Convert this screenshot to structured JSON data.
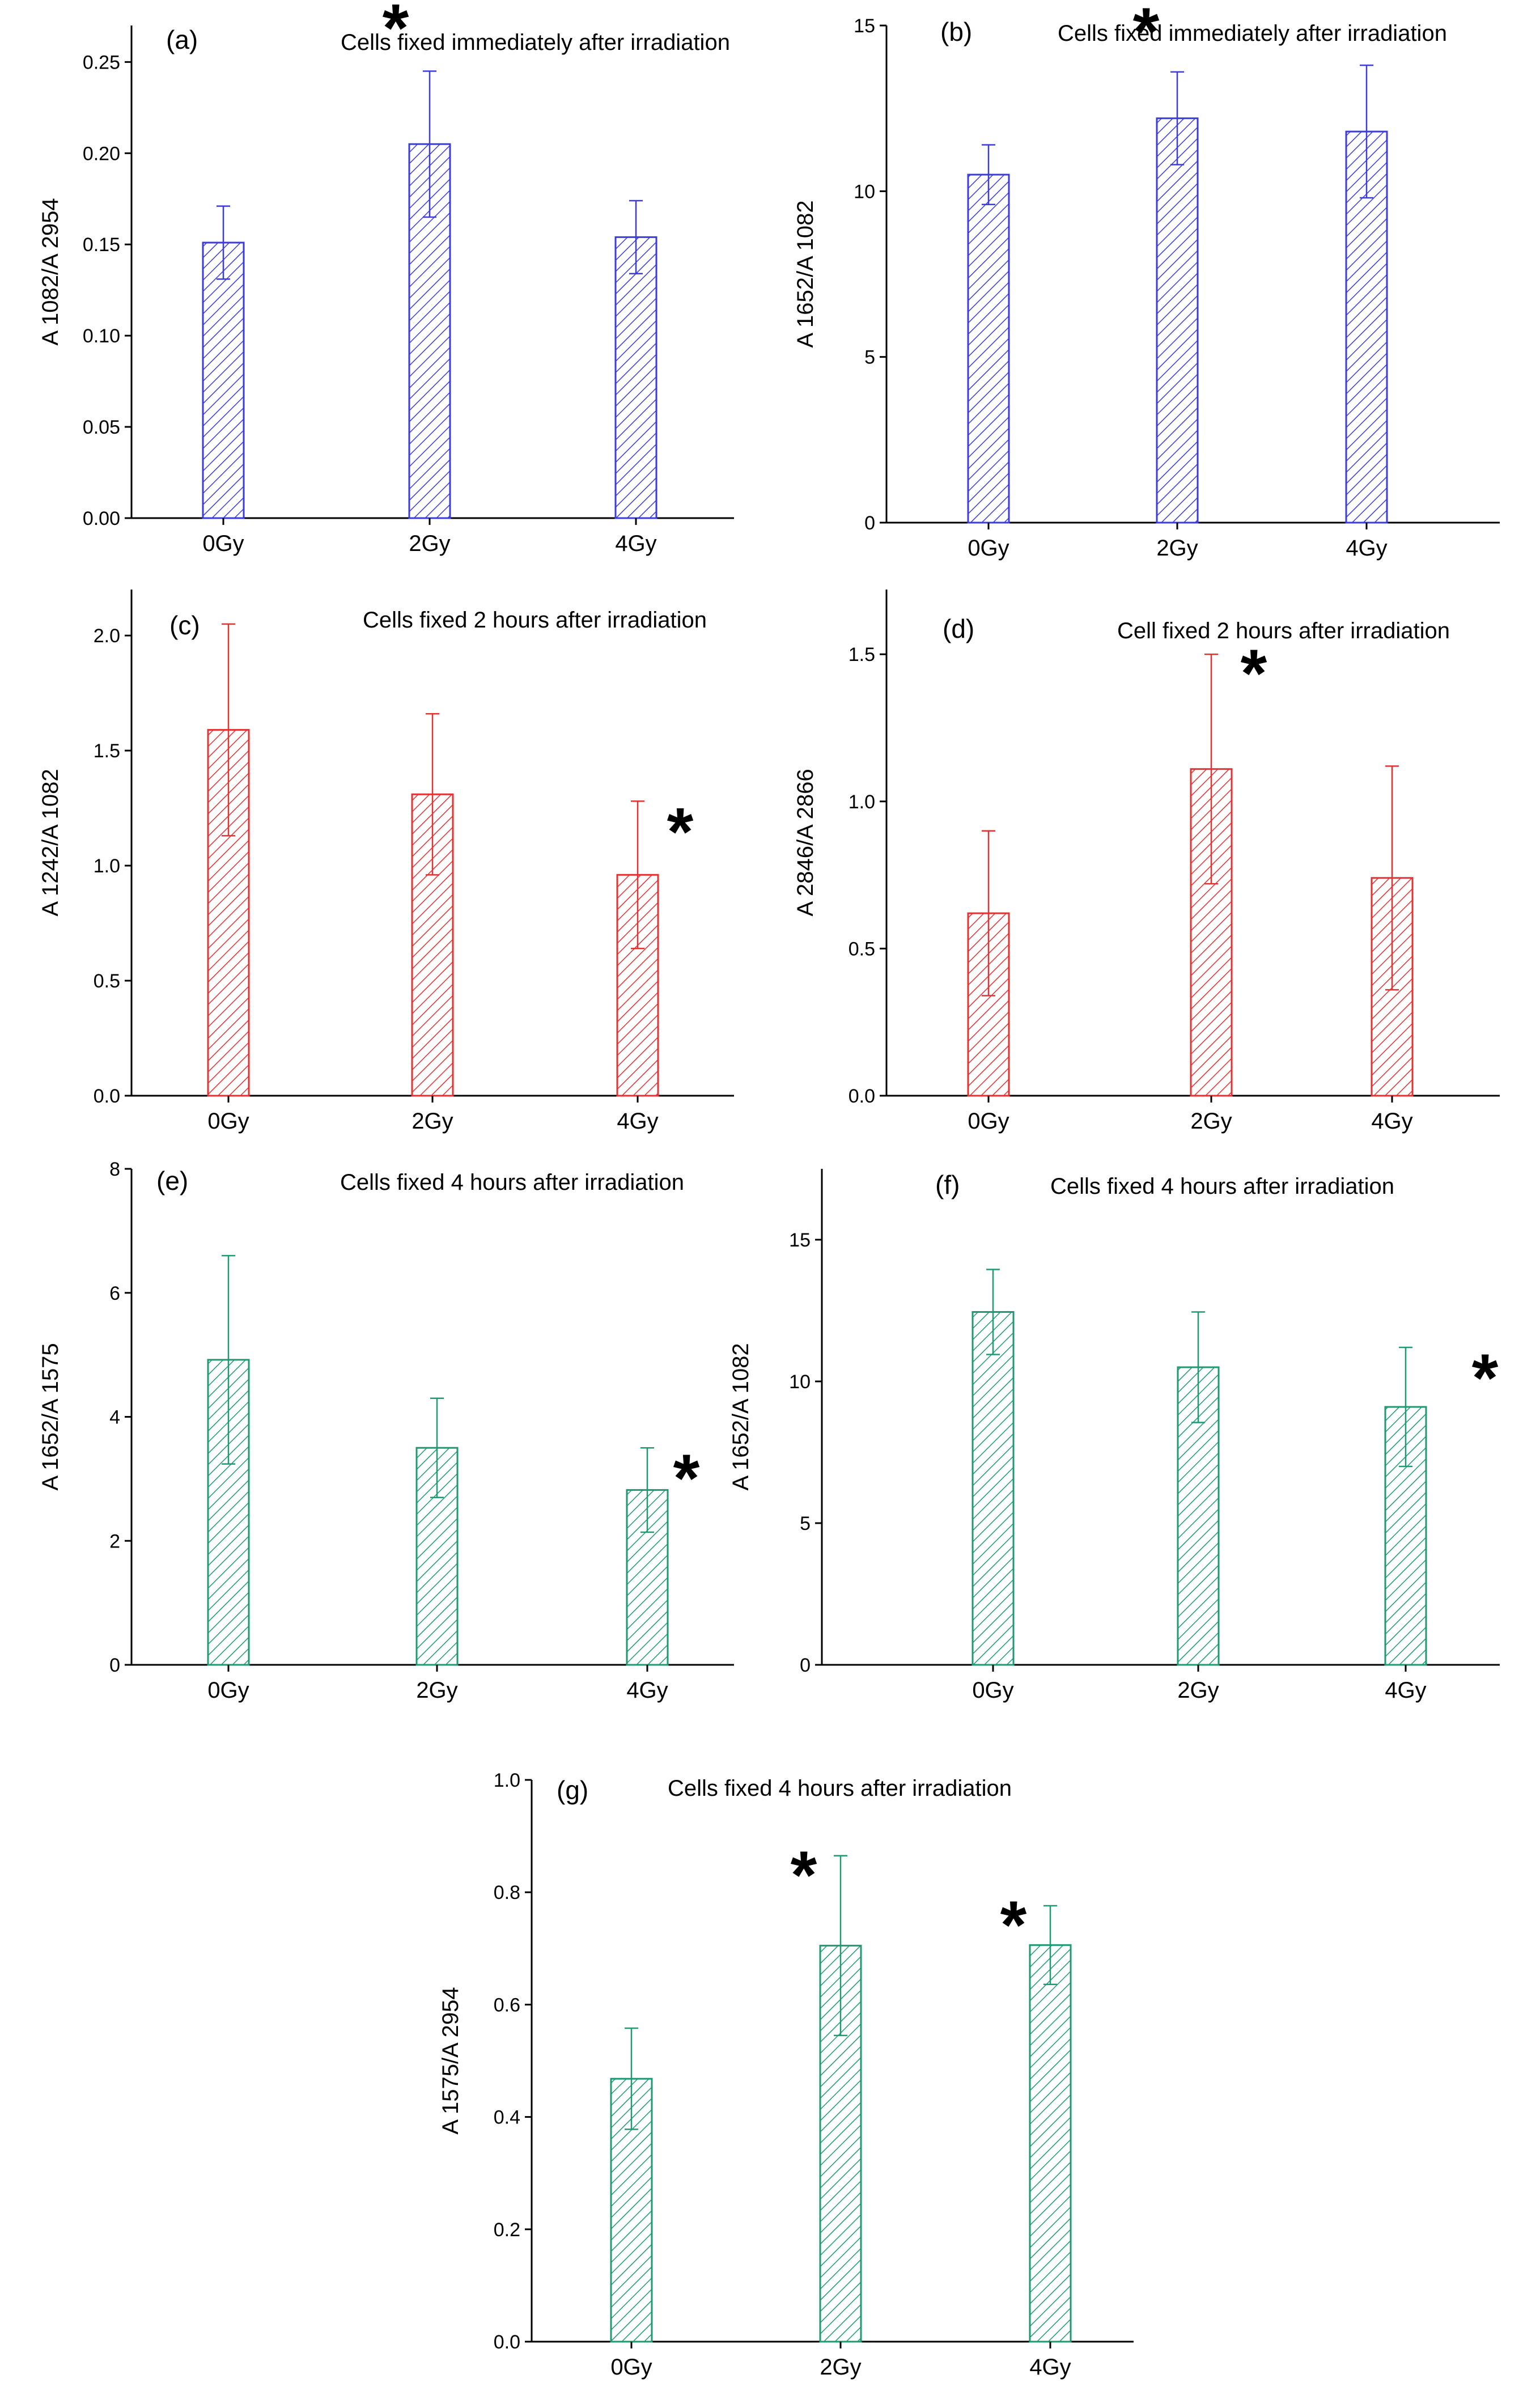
{
  "figure_title": "",
  "colors": {
    "blue": "#3b3bde",
    "red": "#e23232",
    "green": "#1e9a72"
  },
  "chart_data": [
    {
      "type": "bar",
      "panel": "(a)",
      "title": "Cells fixed immediately after irradiation",
      "ylabel": "A 1082/A 2954",
      "xlabel": "",
      "categories": [
        "0Gy",
        "2Gy",
        "4Gy"
      ],
      "values": [
        0.151,
        0.205,
        0.154
      ],
      "errors": [
        0.02,
        0.04,
        0.02
      ],
      "ylim": [
        0,
        0.27
      ],
      "yticks": [
        0.0,
        0.05,
        0.1,
        0.15,
        0.2,
        0.25
      ],
      "ytick_labels": [
        "0.00",
        "0.05",
        "0.10",
        "0.15",
        "0.20",
        "0.25"
      ],
      "significance": [
        "",
        "*",
        ""
      ],
      "color": "blue"
    },
    {
      "type": "bar",
      "panel": "(b)",
      "title": "Cells fixed immediately after irradiation",
      "ylabel": "A 1652/A 1082",
      "xlabel": "",
      "categories": [
        "0Gy",
        "2Gy",
        "4Gy"
      ],
      "values": [
        10.5,
        12.2,
        11.8
      ],
      "errors": [
        0.9,
        1.4,
        2.0
      ],
      "ylim": [
        0,
        15
      ],
      "yticks": [
        0,
        5,
        10,
        15
      ],
      "ytick_labels": [
        "0",
        "5",
        "10",
        "15"
      ],
      "significance": [
        "",
        "*",
        ""
      ],
      "color": "blue"
    },
    {
      "type": "bar",
      "panel": "(c)",
      "title": "Cells fixed 2 hours after irradiation",
      "ylabel": "A 1242/A 1082",
      "xlabel": "",
      "categories": [
        "0Gy",
        "2Gy",
        "4Gy"
      ],
      "values": [
        1.59,
        1.31,
        0.96
      ],
      "errors": [
        0.46,
        0.35,
        0.32
      ],
      "ylim": [
        0,
        2.2
      ],
      "yticks": [
        0.0,
        0.5,
        1.0,
        1.5,
        2.0
      ],
      "ytick_labels": [
        "0.0",
        "0.5",
        "1.0",
        "1.5",
        "2.0"
      ],
      "significance": [
        "",
        "",
        "*"
      ],
      "color": "red"
    },
    {
      "type": "bar",
      "panel": "(d)",
      "title": "Cell fixed 2 hours after irradiation",
      "ylabel": "A 2846/A 2866",
      "xlabel": "",
      "categories": [
        "0Gy",
        "2Gy",
        "4Gy"
      ],
      "values": [
        0.62,
        1.11,
        0.74
      ],
      "errors": [
        0.28,
        0.39,
        0.38
      ],
      "ylim": [
        0,
        1.72
      ],
      "yticks": [
        0.0,
        0.5,
        1.0,
        1.5
      ],
      "ytick_labels": [
        "0.0",
        "0.5",
        "1.0",
        "1.5"
      ],
      "significance": [
        "",
        "*",
        ""
      ],
      "color": "red"
    },
    {
      "type": "bar",
      "panel": "(e)",
      "title": "Cells fixed 4 hours after irradiation",
      "ylabel": "A 1652/A 1575",
      "xlabel": "",
      "categories": [
        "0Gy",
        "2Gy",
        "4Gy"
      ],
      "values": [
        4.92,
        3.5,
        2.82
      ],
      "errors": [
        1.68,
        0.8,
        0.68
      ],
      "ylim": [
        0,
        8
      ],
      "yticks": [
        0,
        2,
        4,
        6,
        8
      ],
      "ytick_labels": [
        "0",
        "2",
        "4",
        "6",
        "8"
      ],
      "significance": [
        "",
        "",
        "*"
      ],
      "color": "green"
    },
    {
      "type": "bar",
      "panel": "(f)",
      "title": "Cells fixed 4 hours after irradiation",
      "ylabel": "A 1652/A 1082",
      "xlabel": "",
      "categories": [
        "0Gy",
        "2Gy",
        "4Gy"
      ],
      "values": [
        12.45,
        10.5,
        9.1
      ],
      "errors": [
        1.5,
        1.95,
        2.1
      ],
      "ylim": [
        0,
        17.5
      ],
      "yticks": [
        0,
        5,
        10,
        15
      ],
      "ytick_labels": [
        "0",
        "5",
        "10",
        "15"
      ],
      "significance": [
        "",
        "",
        "*"
      ],
      "color": "green"
    },
    {
      "type": "bar",
      "panel": "(g)",
      "title": "Cells fixed 4 hours after irradiation",
      "ylabel": "A 1575/A 2954",
      "xlabel": "",
      "categories": [
        "0Gy",
        "2Gy",
        "4Gy"
      ],
      "values": [
        0.468,
        0.705,
        0.706
      ],
      "errors": [
        0.09,
        0.16,
        0.07
      ],
      "ylim": [
        0,
        1.0
      ],
      "yticks": [
        0.0,
        0.2,
        0.4,
        0.6,
        0.8,
        1.0
      ],
      "ytick_labels": [
        "0.0",
        "0.2",
        "0.4",
        "0.6",
        "0.8",
        "1.0"
      ],
      "significance": [
        "",
        "*",
        "*"
      ],
      "color": "green"
    }
  ]
}
